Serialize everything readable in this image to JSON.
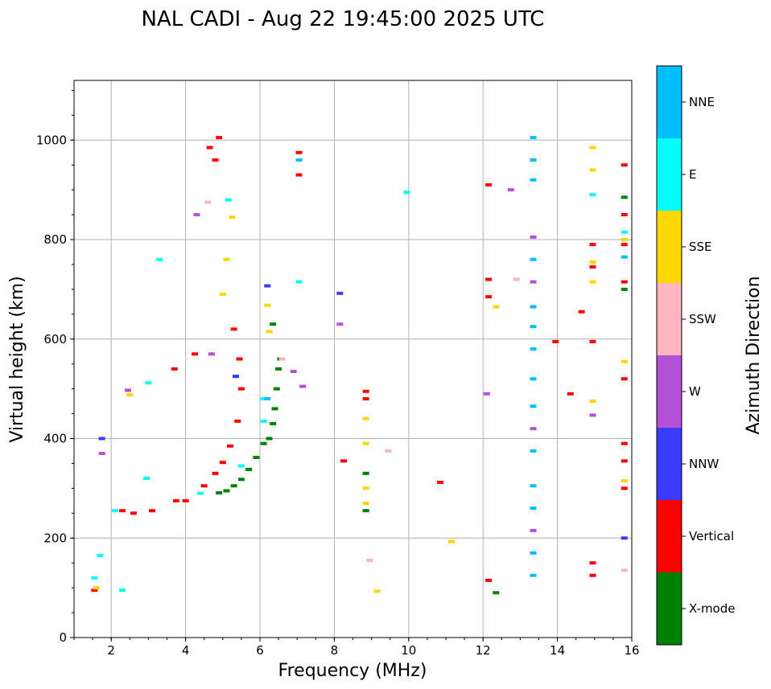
{
  "chart_data": {
    "type": "scatter",
    "title": "NAL CADI - Aug 22 19:45:00 2025 UTC",
    "xlabel": "Frequency (MHz)",
    "ylabel": "Virtual height (km)",
    "xlim": [
      1,
      16
    ],
    "ylim": [
      0,
      1120
    ],
    "xticks": [
      2,
      4,
      6,
      8,
      10,
      12,
      14,
      16
    ],
    "yticks": [
      0,
      200,
      400,
      600,
      800,
      1000
    ],
    "grid": true,
    "colorbar": {
      "title": "Azimuth Direction",
      "categories": [
        {
          "name": "X-mode",
          "color": "#008000"
        },
        {
          "name": "Vertical",
          "color": "#ff0000"
        },
        {
          "name": "NNW",
          "color": "#3b3bff"
        },
        {
          "name": "W",
          "color": "#b352d6"
        },
        {
          "name": "SSW",
          "color": "#ffb6c1"
        },
        {
          "name": "SSE",
          "color": "#ffd700"
        },
        {
          "name": "E",
          "color": "#00ffff"
        },
        {
          "name": "NNE",
          "color": "#00bfff"
        }
      ]
    },
    "series": [
      {
        "name": "X-mode",
        "points": [
          [
            4.9,
            291
          ],
          [
            5.1,
            295
          ],
          [
            5.3,
            305
          ],
          [
            5.5,
            318
          ],
          [
            5.7,
            338
          ],
          [
            5.9,
            362
          ],
          [
            6.1,
            390
          ],
          [
            6.25,
            400
          ],
          [
            6.35,
            430
          ],
          [
            6.4,
            460
          ],
          [
            6.45,
            500
          ],
          [
            6.5,
            540
          ],
          [
            6.55,
            560
          ],
          [
            6.35,
            630
          ],
          [
            8.85,
            255
          ],
          [
            8.85,
            330
          ],
          [
            12.35,
            90
          ],
          [
            15.8,
            700
          ],
          [
            15.8,
            885
          ]
        ]
      },
      {
        "name": "Vertical",
        "points": [
          [
            1.55,
            95
          ],
          [
            2.3,
            255
          ],
          [
            2.6,
            250
          ],
          [
            3.1,
            255
          ],
          [
            3.75,
            275
          ],
          [
            4.0,
            275
          ],
          [
            4.5,
            305
          ],
          [
            4.8,
            330
          ],
          [
            5.0,
            352
          ],
          [
            5.2,
            385
          ],
          [
            5.4,
            435
          ],
          [
            5.5,
            500
          ],
          [
            5.45,
            560
          ],
          [
            5.3,
            620
          ],
          [
            4.25,
            570
          ],
          [
            3.7,
            540
          ],
          [
            4.8,
            960
          ],
          [
            4.65,
            985
          ],
          [
            4.9,
            1005
          ],
          [
            7.05,
            930
          ],
          [
            7.05,
            975
          ],
          [
            8.85,
            480
          ],
          [
            8.85,
            495
          ],
          [
            8.25,
            355
          ],
          [
            10.85,
            312
          ],
          [
            12.15,
            115
          ],
          [
            12.15,
            720
          ],
          [
            12.15,
            685
          ],
          [
            12.15,
            910
          ],
          [
            13.95,
            595
          ],
          [
            14.35,
            490
          ],
          [
            14.65,
            655
          ],
          [
            14.95,
            125
          ],
          [
            14.95,
            150
          ],
          [
            14.95,
            595
          ],
          [
            14.95,
            745
          ],
          [
            14.95,
            790
          ],
          [
            15.8,
            300
          ],
          [
            15.8,
            355
          ],
          [
            15.8,
            390
          ],
          [
            15.8,
            520
          ],
          [
            15.8,
            715
          ],
          [
            15.8,
            790
          ],
          [
            15.8,
            850
          ],
          [
            15.8,
            950
          ]
        ]
      },
      {
        "name": "NNW",
        "points": [
          [
            1.75,
            400
          ],
          [
            5.35,
            525
          ],
          [
            6.2,
            707
          ],
          [
            8.15,
            692
          ],
          [
            15.8,
            200
          ]
        ]
      },
      {
        "name": "W",
        "points": [
          [
            1.75,
            370
          ],
          [
            2.45,
            497
          ],
          [
            4.3,
            850
          ],
          [
            4.7,
            570
          ],
          [
            6.9,
            535
          ],
          [
            7.15,
            505
          ],
          [
            8.15,
            630
          ],
          [
            12.1,
            490
          ],
          [
            12.75,
            900
          ],
          [
            13.35,
            215
          ],
          [
            13.35,
            420
          ],
          [
            13.35,
            715
          ],
          [
            13.35,
            805
          ],
          [
            14.95,
            447
          ]
        ]
      },
      {
        "name": "SSW",
        "points": [
          [
            4.6,
            875
          ],
          [
            6.6,
            560
          ],
          [
            8.95,
            155
          ],
          [
            9.45,
            375
          ],
          [
            12.9,
            720
          ],
          [
            15.8,
            135
          ]
        ]
      },
      {
        "name": "SSE",
        "points": [
          [
            1.6,
            100
          ],
          [
            2.5,
            488
          ],
          [
            5.0,
            690
          ],
          [
            5.1,
            760
          ],
          [
            5.25,
            845
          ],
          [
            6.25,
            615
          ],
          [
            6.2,
            668
          ],
          [
            8.85,
            270
          ],
          [
            8.85,
            300
          ],
          [
            8.85,
            390
          ],
          [
            8.85,
            440
          ],
          [
            9.15,
            93
          ],
          [
            11.15,
            193
          ],
          [
            12.35,
            665
          ],
          [
            14.95,
            475
          ],
          [
            14.95,
            715
          ],
          [
            14.95,
            755
          ],
          [
            14.95,
            940
          ],
          [
            14.95,
            985
          ],
          [
            15.8,
            315
          ],
          [
            15.8,
            555
          ],
          [
            15.8,
            800
          ]
        ]
      },
      {
        "name": "E",
        "points": [
          [
            1.55,
            120
          ],
          [
            1.7,
            165
          ],
          [
            2.1,
            255
          ],
          [
            2.3,
            95
          ],
          [
            2.95,
            320
          ],
          [
            3.0,
            512
          ],
          [
            3.3,
            760
          ],
          [
            4.4,
            290
          ],
          [
            5.15,
            880
          ],
          [
            5.5,
            345
          ],
          [
            6.1,
            435
          ],
          [
            6.1,
            480
          ],
          [
            7.05,
            715
          ],
          [
            9.95,
            895
          ],
          [
            14.95,
            890
          ],
          [
            15.8,
            815
          ]
        ]
      },
      {
        "name": "NNE",
        "points": [
          [
            6.2,
            480
          ],
          [
            7.05,
            960
          ],
          [
            13.35,
            125
          ],
          [
            13.35,
            170
          ],
          [
            13.35,
            260
          ],
          [
            13.35,
            305
          ],
          [
            13.35,
            375
          ],
          [
            13.35,
            465
          ],
          [
            13.35,
            520
          ],
          [
            13.35,
            580
          ],
          [
            13.35,
            625
          ],
          [
            13.35,
            665
          ],
          [
            13.35,
            760
          ],
          [
            13.35,
            920
          ],
          [
            13.35,
            960
          ],
          [
            13.35,
            1005
          ],
          [
            15.8,
            765
          ]
        ]
      }
    ]
  }
}
